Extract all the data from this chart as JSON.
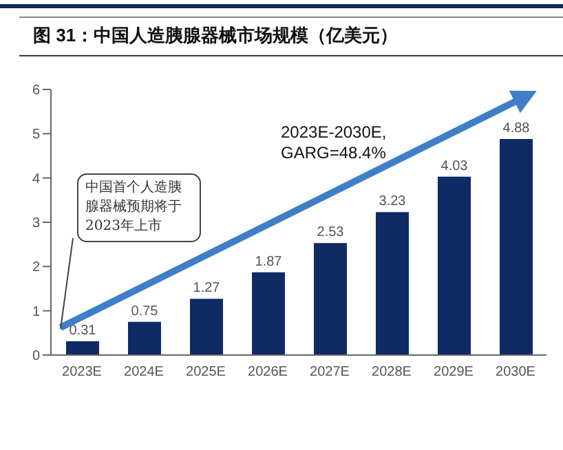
{
  "chart_data": {
    "type": "bar",
    "title": "图 31：中国人造胰腺器械市场规模（亿美元）",
    "categories": [
      "2023E",
      "2024E",
      "2025E",
      "2026E",
      "2027E",
      "2028E",
      "2029E",
      "2030E"
    ],
    "values": [
      0.31,
      0.75,
      1.27,
      1.87,
      2.53,
      3.23,
      4.03,
      4.88
    ],
    "color": "#0f2b66",
    "ylim": [
      0,
      6
    ],
    "yticks": [
      0,
      1,
      2,
      3,
      4,
      5,
      6
    ],
    "data_labels": true,
    "annotations": [
      "中国首个人造胰腺器械预期将于2023年上市",
      "2023E-2030E,\nGARG=48.4%"
    ]
  }
}
